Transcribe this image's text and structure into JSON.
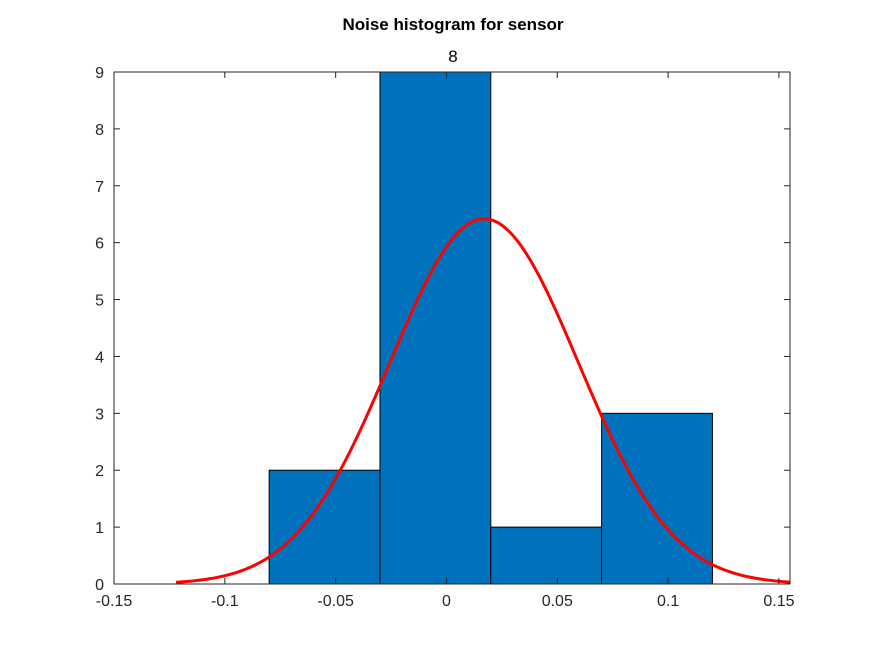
{
  "chart_data": {
    "type": "bar",
    "title": "Noise histogram for sensor",
    "subtitle": "8",
    "xlim": [
      -0.15,
      0.155
    ],
    "ylim": [
      0,
      9
    ],
    "x_ticks": [
      -0.15,
      -0.1,
      -0.05,
      0,
      0.05,
      0.1,
      0.15
    ],
    "x_tick_labels": [
      "-0.15",
      "-0.1",
      "-0.05",
      "0",
      "0.05",
      "0.1",
      "0.15"
    ],
    "y_ticks": [
      0,
      1,
      2,
      3,
      4,
      5,
      6,
      7,
      8,
      9
    ],
    "y_tick_labels": [
      "0",
      "1",
      "2",
      "3",
      "4",
      "5",
      "6",
      "7",
      "8",
      "9"
    ],
    "bins": [
      {
        "x0": -0.08,
        "x1": -0.03,
        "count": 2
      },
      {
        "x0": -0.03,
        "x1": 0.02,
        "count": 9
      },
      {
        "x0": 0.02,
        "x1": 0.07,
        "count": 1
      },
      {
        "x0": 0.07,
        "x1": 0.12,
        "count": 3
      }
    ],
    "fit": {
      "type": "normal",
      "mean": 0.017,
      "peak": 6.42,
      "sigma": 0.0425,
      "x_range": [
        -0.122,
        0.155
      ]
    },
    "bar_color": "#0072BD",
    "fit_color": "#FF0000",
    "grid": false,
    "box": true
  }
}
